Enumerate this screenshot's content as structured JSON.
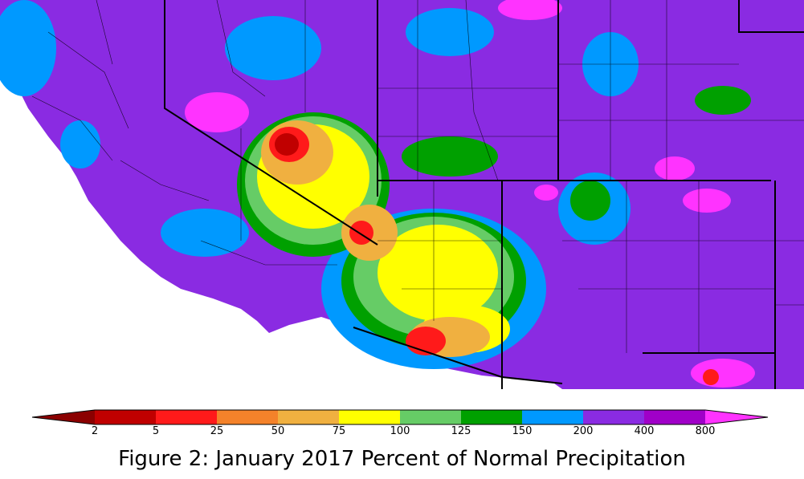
{
  "caption": "Figure 2: January 2017 Percent of Normal Precipitation",
  "legend": {
    "tick_labels": [
      "2",
      "5",
      "25",
      "50",
      "75",
      "100",
      "125",
      "150",
      "200",
      "400",
      "800"
    ],
    "colors": {
      "below_2": "#8b0000",
      "2_5": "#c00000",
      "5_25": "#ff1a1a",
      "25_50": "#f4822a",
      "50_75": "#f0b040",
      "75_100": "#ffff00",
      "100_125": "#66cc66",
      "125_150": "#00a000",
      "150_200": "#0099ff",
      "200_400": "#8a2be2",
      "400_800": "#a000c8",
      "above_800": "#ff33ff"
    }
  },
  "map": {
    "base_color": "#8a2be2",
    "ocean_color": "#ffffff",
    "boundary_color": "#000000"
  }
}
